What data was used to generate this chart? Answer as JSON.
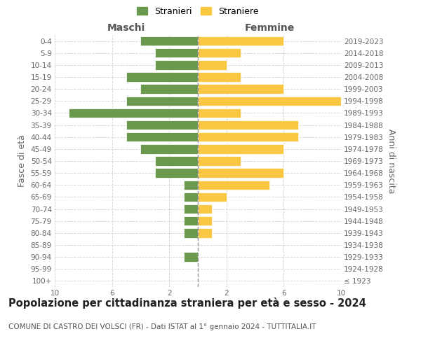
{
  "age_groups": [
    "100+",
    "95-99",
    "90-94",
    "85-89",
    "80-84",
    "75-79",
    "70-74",
    "65-69",
    "60-64",
    "55-59",
    "50-54",
    "45-49",
    "40-44",
    "35-39",
    "30-34",
    "25-29",
    "20-24",
    "15-19",
    "10-14",
    "5-9",
    "0-4"
  ],
  "birth_years": [
    "≤ 1923",
    "1924-1928",
    "1929-1933",
    "1934-1938",
    "1939-1943",
    "1944-1948",
    "1949-1953",
    "1954-1958",
    "1959-1963",
    "1964-1968",
    "1969-1973",
    "1974-1978",
    "1979-1983",
    "1984-1988",
    "1989-1993",
    "1994-1998",
    "1999-2003",
    "2004-2008",
    "2009-2013",
    "2014-2018",
    "2019-2023"
  ],
  "males": [
    0,
    0,
    1,
    0,
    1,
    1,
    1,
    1,
    1,
    3,
    3,
    4,
    5,
    5,
    9,
    5,
    4,
    5,
    3,
    3,
    4
  ],
  "females": [
    0,
    0,
    0,
    0,
    1,
    1,
    1,
    2,
    5,
    6,
    3,
    6,
    7,
    7,
    3,
    10,
    6,
    3,
    2,
    3,
    6
  ],
  "male_color": "#6a994e",
  "female_color": "#f9c742",
  "bg_color": "#ffffff",
  "grid_color": "#cccccc",
  "bar_edge_color": "#ffffff",
  "title": "Popolazione per cittadinanza straniera per età e sesso - 2024",
  "subtitle": "COMUNE DI CASTRO DEI VOLSCI (FR) - Dati ISTAT al 1° gennaio 2024 - TUTTITALIA.IT",
  "ylabel_left": "Fasce di età",
  "ylabel_right": "Anni di nascita",
  "xlabel_left": "Maschi",
  "xlabel_right": "Femmine",
  "legend_stranieri": "Stranieri",
  "legend_straniere": "Straniere",
  "xlim": 10,
  "title_fontsize": 10.5,
  "subtitle_fontsize": 7.5,
  "tick_fontsize": 7.5,
  "label_fontsize": 9
}
